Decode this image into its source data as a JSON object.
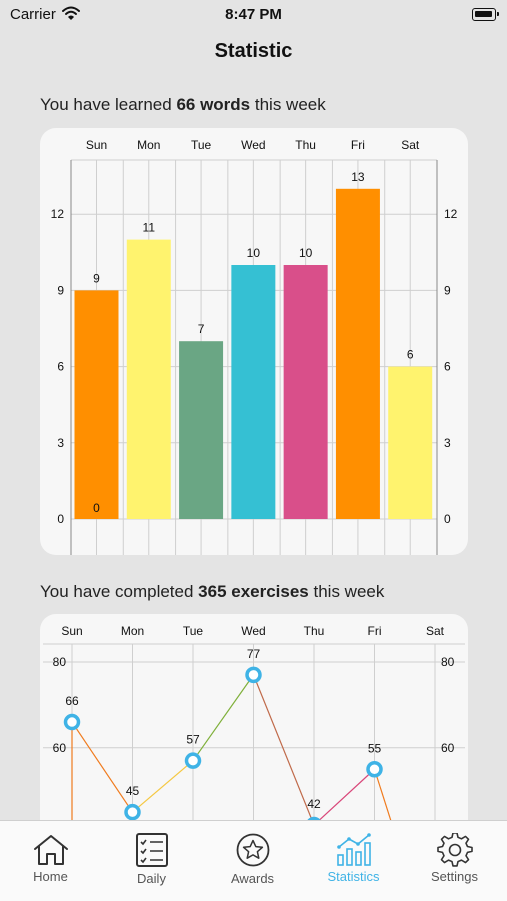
{
  "status_bar": {
    "carrier": "Carrier",
    "time": "8:47 PM"
  },
  "page_title": "Statistic",
  "words_heading": {
    "prefix": "You have learned ",
    "emphasis": "66 words",
    "suffix": " this week"
  },
  "exercises_heading": {
    "prefix": "You have completed ",
    "emphasis": "365 exercises",
    "suffix": " this week"
  },
  "tabs": [
    {
      "label": "Home",
      "icon": "home-icon"
    },
    {
      "label": "Daily",
      "icon": "checklist-icon"
    },
    {
      "label": "Awards",
      "icon": "star-icon"
    },
    {
      "label": "Statistics",
      "icon": "statistics-icon",
      "active": true
    },
    {
      "label": "Settings",
      "icon": "gear-icon"
    }
  ],
  "colors": {
    "accent": "#3fb3e6"
  },
  "chart_data": [
    {
      "type": "bar",
      "categories": [
        "Sun",
        "Mon",
        "Tue",
        "Wed",
        "Thu",
        "Fri",
        "Sat"
      ],
      "values": [
        9,
        11,
        7,
        10,
        10,
        13,
        6
      ],
      "colors": [
        "#ff8f00",
        "#fff36e",
        "#6aa684",
        "#35c0d3",
        "#d94f8a",
        "#ff8f00",
        "#fff36e"
      ],
      "yticks": [
        0,
        3,
        6,
        9,
        12
      ],
      "ylim": [
        0,
        14
      ],
      "extra_labels": [
        {
          "category": "Sun",
          "value": 0,
          "text": "0"
        }
      ],
      "grid": true,
      "axis_labels_top": true,
      "ylabels_both_sides": true
    },
    {
      "type": "line",
      "categories": [
        "Sun",
        "Mon",
        "Tue",
        "Wed",
        "Thu",
        "Fri",
        "Sat"
      ],
      "values": [
        66,
        45,
        57,
        77,
        42,
        55,
        null
      ],
      "segment_colors": [
        "#f07b1e",
        "#f5c842",
        "#7fb03a",
        "#c06a4a",
        "#d9477a",
        "#f07b1e"
      ],
      "yticks": [
        60,
        80
      ],
      "grid": true,
      "axis_labels_top": true,
      "ylabels_both_sides": true
    }
  ]
}
